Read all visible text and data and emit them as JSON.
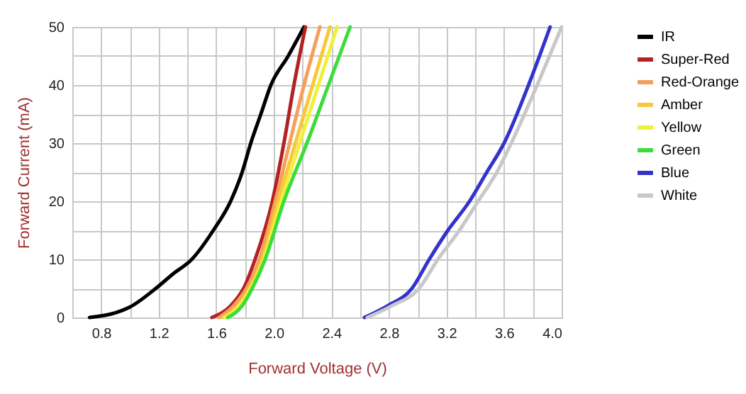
{
  "chart_data": {
    "type": "line",
    "xlabel": "Forward Voltage (V)",
    "ylabel": "Forward Current (mA)",
    "xlim": [
      0.6,
      4.0
    ],
    "ylim": [
      0,
      50
    ],
    "xticks": [
      {
        "value": 0.6,
        "label": null
      },
      0.8,
      {
        "value": 1.0,
        "label": null
      },
      1.2,
      {
        "value": 1.4,
        "label": null
      },
      1.6,
      {
        "value": 1.8,
        "label": null
      },
      {
        "value": 2.0,
        "label": "2.0"
      },
      {
        "value": 2.2,
        "label": null
      },
      2.4,
      {
        "value": 2.6,
        "label": null
      },
      2.8,
      {
        "value": 3.0,
        "label": null
      },
      3.2,
      {
        "value": 3.4,
        "label": null
      },
      3.6,
      {
        "value": 3.8,
        "label": null
      },
      {
        "value": 4.0,
        "label": "4.0"
      }
    ],
    "yticks": [
      0,
      {
        "value": 5,
        "label": null
      },
      10,
      {
        "value": 15,
        "label": null
      },
      20,
      {
        "value": 25,
        "label": null
      },
      30,
      {
        "value": 35,
        "label": null
      },
      40,
      {
        "value": 45,
        "label": null
      },
      50
    ],
    "grid": true,
    "legend": "right",
    "marker": "none",
    "line_style": "solid",
    "series": [
      {
        "name": "IR",
        "color": "#000000",
        "x": [
          0.72,
          0.9,
          1.0,
          1.18,
          1.3,
          1.43,
          1.58,
          1.7,
          1.78,
          1.84,
          1.91,
          1.98,
          2.1,
          2.21
        ],
        "values": [
          0,
          0.8,
          1.8,
          5,
          7.5,
          10,
          15,
          20,
          25,
          30,
          35,
          40,
          45,
          50
        ]
      },
      {
        "name": "Super-Red",
        "color": "#b22222",
        "x": [
          1.57,
          1.7,
          1.79,
          1.87,
          1.99,
          2.07,
          2.14,
          2.22
        ],
        "values": [
          0,
          2,
          5,
          10,
          20,
          30,
          40,
          50
        ]
      },
      {
        "name": "Red-Orange",
        "color": "#f5a05a",
        "x": [
          1.62,
          1.72,
          1.81,
          1.9,
          2.01,
          2.11,
          2.21,
          2.32
        ],
        "values": [
          0,
          2,
          5,
          10,
          20,
          30,
          40,
          50
        ]
      },
      {
        "name": "Amber",
        "color": "#f7c93a",
        "x": [
          1.65,
          1.75,
          1.83,
          1.92,
          2.03,
          2.15,
          2.27,
          2.39
        ],
        "values": [
          0,
          2,
          5,
          10,
          20,
          30,
          40,
          50
        ]
      },
      {
        "name": "Yellow",
        "color": "#f0f03c",
        "x": [
          1.66,
          1.76,
          1.84,
          1.93,
          2.05,
          2.18,
          2.31,
          2.44
        ],
        "values": [
          0,
          2,
          5,
          10,
          20,
          30,
          40,
          50
        ]
      },
      {
        "name": "Green",
        "color": "#3cdc3c",
        "x": [
          1.68,
          1.78,
          1.85,
          1.94,
          2.07,
          2.23,
          2.38,
          2.53
        ],
        "values": [
          0,
          2,
          5,
          10,
          20,
          30,
          40,
          50
        ]
      },
      {
        "name": "Blue",
        "color": "#3333cc",
        "x": [
          2.63,
          2.79,
          2.96,
          3.08,
          3.21,
          3.36,
          3.48,
          3.6,
          3.77,
          3.92
        ],
        "values": [
          0,
          2,
          5,
          10,
          15,
          20,
          25,
          30,
          40,
          50
        ]
      },
      {
        "name": "White",
        "color": "#c8c8c8",
        "x": [
          2.65,
          2.82,
          3.01,
          3.14,
          3.29,
          3.42,
          3.55,
          3.65,
          3.83,
          4.0
        ],
        "values": [
          0,
          2,
          5,
          10,
          15,
          20,
          25,
          30,
          40,
          50
        ]
      }
    ]
  }
}
